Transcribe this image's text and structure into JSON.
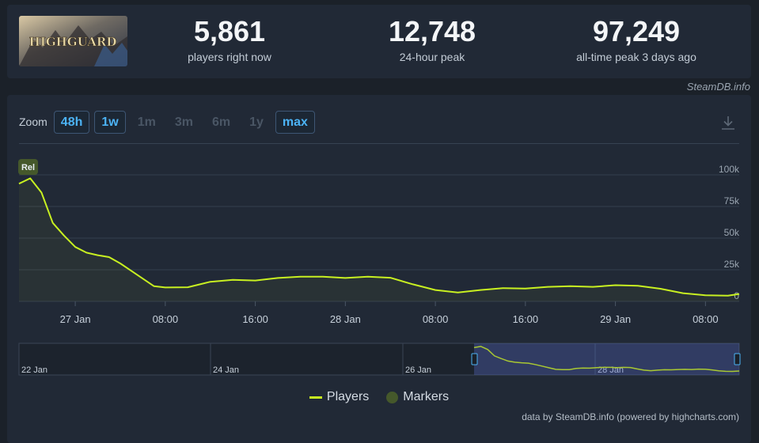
{
  "game": {
    "title_art": "HIGHGUARD"
  },
  "stats": [
    {
      "value": "5,861",
      "label": "players right now"
    },
    {
      "value": "12,748",
      "label": "24-hour peak"
    },
    {
      "value": "97,249",
      "label": "all-time peak 3 days ago"
    }
  ],
  "credit_top": "SteamDB.info",
  "zoom": {
    "label": "Zoom",
    "buttons": [
      {
        "label": "48h",
        "active": true
      },
      {
        "label": "1w",
        "active": true
      },
      {
        "label": "1m",
        "active": false
      },
      {
        "label": "3m",
        "active": false
      },
      {
        "label": "6m",
        "active": false
      },
      {
        "label": "1y",
        "active": false
      },
      {
        "label": "max",
        "active": true
      }
    ]
  },
  "download_icon": "download-icon",
  "legend": {
    "players": "Players",
    "markers": "Markers"
  },
  "credit_bottom": "data by SteamDB.info (powered by highcharts.com)",
  "colors": {
    "line": "#c8f021",
    "accent": "#4cb3f5",
    "marker": "#45582b"
  },
  "chart_data": {
    "type": "line",
    "series": [
      {
        "name": "Players",
        "x": [
          "26 Jan 19:00",
          "26 Jan 20:00",
          "26 Jan 21:00",
          "26 Jan 22:00",
          "26 Jan 23:00",
          "27 Jan 00:00",
          "27 Jan 01:00",
          "27 Jan 02:00",
          "27 Jan 03:00",
          "27 Jan 04:00",
          "27 Jan 05:00",
          "27 Jan 06:00",
          "27 Jan 07:00",
          "27 Jan 08:00",
          "27 Jan 10:00",
          "27 Jan 12:00",
          "27 Jan 14:00",
          "27 Jan 16:00",
          "27 Jan 18:00",
          "27 Jan 20:00",
          "27 Jan 22:00",
          "28 Jan 00:00",
          "28 Jan 02:00",
          "28 Jan 04:00",
          "28 Jan 06:00",
          "28 Jan 08:00",
          "28 Jan 10:00",
          "28 Jan 12:00",
          "28 Jan 14:00",
          "28 Jan 16:00",
          "28 Jan 18:00",
          "28 Jan 20:00",
          "28 Jan 22:00",
          "29 Jan 00:00",
          "29 Jan 02:00",
          "29 Jan 04:00",
          "29 Jan 06:00",
          "29 Jan 08:00",
          "29 Jan 10:00",
          "29 Jan 11:00"
        ],
        "values": [
          93000,
          97249,
          86000,
          62000,
          52000,
          43000,
          38500,
          36500,
          35000,
          30000,
          24000,
          18000,
          12000,
          11000,
          11200,
          15500,
          17000,
          16500,
          18500,
          19500,
          19500,
          18500,
          19500,
          18700,
          13500,
          9000,
          7000,
          9000,
          10500,
          10200,
          11500,
          12000,
          11500,
          12800,
          12400,
          10000,
          6500,
          4800,
          4500,
          5861
        ]
      }
    ],
    "markers": [
      {
        "x": "26 Jan 19:00",
        "label": "Rel"
      }
    ],
    "x_ticks": [
      "27 Jan",
      "08:00",
      "16:00",
      "28 Jan",
      "08:00",
      "16:00",
      "29 Jan",
      "08:00"
    ],
    "y_ticks": [
      "0",
      "25k",
      "50k",
      "75k",
      "100k"
    ],
    "ylim": [
      0,
      100000
    ],
    "grid": true,
    "navigator": {
      "labels": [
        "22 Jan",
        "24 Jan",
        "26 Jan",
        "28 Jan"
      ]
    }
  }
}
